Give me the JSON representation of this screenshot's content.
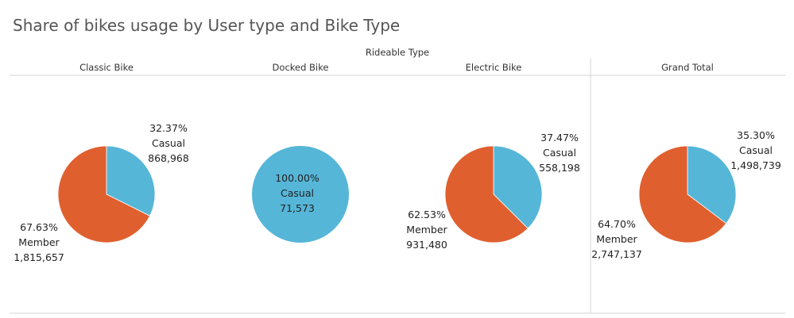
{
  "title": "Share of bikes usage by User type and Bike Type",
  "chart_data": {
    "type": "pie",
    "title": "Share of bikes usage by User type and Bike Type",
    "column_header": "Rideable Type",
    "colors": {
      "Casual": "#56b6d8",
      "Member": "#e05f2f"
    },
    "panels": [
      {
        "name": "Classic Bike",
        "slices": [
          {
            "category": "Casual",
            "percent_label": "32.37%",
            "value": 868968,
            "value_label": "868,968"
          },
          {
            "category": "Member",
            "percent_label": "67.63%",
            "value": 1815657,
            "value_label": "1,815,657"
          }
        ]
      },
      {
        "name": "Docked Bike",
        "slices": [
          {
            "category": "Casual",
            "percent_label": "100.00%",
            "value": 71573,
            "value_label": "71,573"
          }
        ]
      },
      {
        "name": "Electric Bike",
        "slices": [
          {
            "category": "Casual",
            "percent_label": "37.47%",
            "value": 558198,
            "value_label": "558,198"
          },
          {
            "category": "Member",
            "percent_label": "62.53%",
            "value": 931480,
            "value_label": "931,480"
          }
        ]
      },
      {
        "name": "Grand Total",
        "slices": [
          {
            "category": "Casual",
            "percent_label": "35.30%",
            "value": 1498739,
            "value_label": "1,498,739"
          },
          {
            "category": "Member",
            "percent_label": "64.70%",
            "value": 2747137,
            "value_label": "2,747,137"
          }
        ]
      }
    ]
  }
}
